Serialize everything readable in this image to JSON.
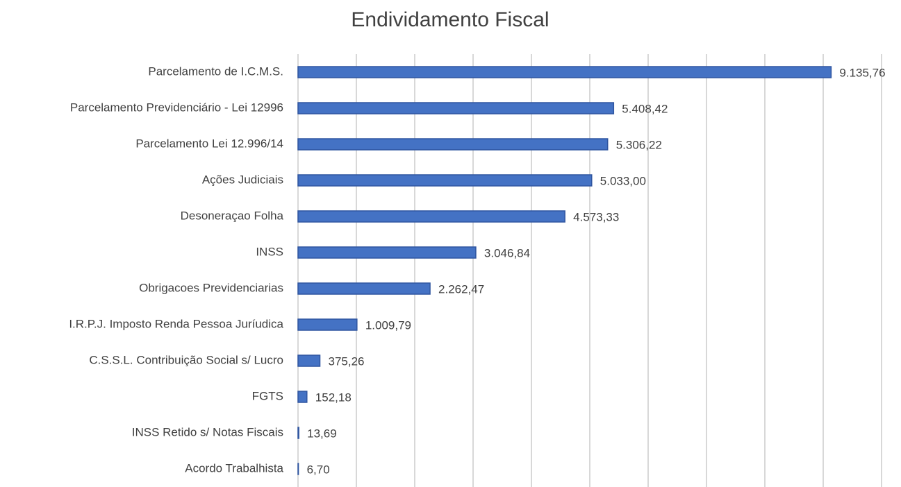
{
  "chart_data": {
    "type": "hbar",
    "title": "Endividamento Fiscal",
    "categories": [
      "Parcelamento de I.C.M.S.",
      "Parcelamento Previdenciário - Lei 12996",
      "Parcelamento Lei 12.996/14",
      "Ações Judiciais",
      "Desoneraçao Folha",
      "INSS",
      "Obrigacoes Previdenciarias",
      "I.R.P.J. Imposto  Renda Pessoa Juríudica",
      "C.S.S.L. Contribuição Social s/ Lucro",
      "FGTS",
      "INSS Retido s/ Notas Fiscais",
      "Acordo Trabalhista"
    ],
    "values": [
      9135.76,
      5408.42,
      5306.22,
      5033.0,
      4573.33,
      3046.84,
      2262.47,
      1009.79,
      375.26,
      152.18,
      13.69,
      6.7
    ],
    "value_labels": [
      "9.135,76",
      "5.408,42",
      "5.306,22",
      "5.033,00",
      "4.573,33",
      "3.046,84",
      "2.262,47",
      "1.009,79",
      "375,26",
      "152,18",
      "13,69",
      "6,70"
    ],
    "color": "#4472c4",
    "xlim": [
      0,
      10000
    ],
    "xticks": [
      0,
      1000,
      2000,
      3000,
      4000,
      5000,
      6000,
      7000,
      8000,
      9000,
      10000
    ],
    "grid": true
  }
}
